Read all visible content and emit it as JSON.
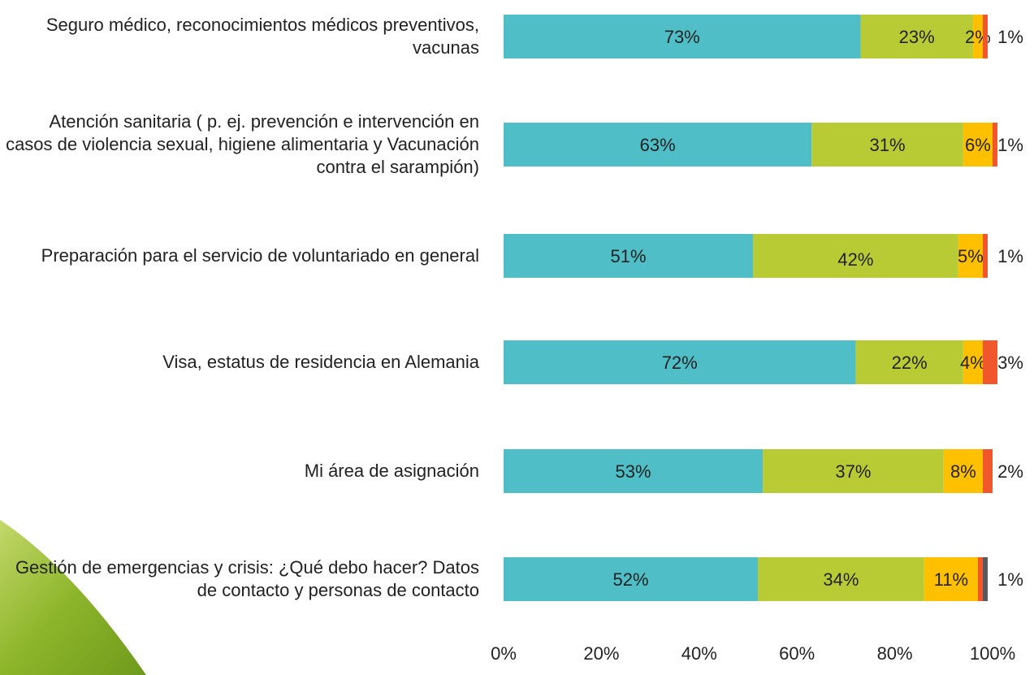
{
  "chart_data": {
    "type": "stacked-bar-horizontal",
    "categories": [
      "Seguro médico, reconocimientos médicos preventivos, vacunas",
      "Atención sanitaria ( p. ej. prevención e intervención en casos de violencia sexual, higiene alimentaria y Vacunación contra el sarampión)",
      "Preparación para el servicio de voluntariado en general",
      "Visa, estatus de residencia en Alemania",
      "Mi área de asignación",
      "Gestión de emergencias y crisis: ¿Qué debo hacer? Datos de contacto y personas de contacto"
    ],
    "series": [
      {
        "color": "#4fbec6",
        "values": [
          73,
          63,
          51,
          72,
          53,
          52
        ],
        "value_labels": [
          "73%",
          "63%",
          "51%",
          "72%",
          "53%",
          "52%"
        ]
      },
      {
        "color": "#b9cb34",
        "values": [
          23,
          31,
          42,
          22,
          37,
          34
        ],
        "value_labels": [
          "23%",
          "31%",
          "42%",
          "22%",
          "37%",
          "34%"
        ]
      },
      {
        "color": "#ffc000",
        "values": [
          2,
          6,
          5,
          4,
          8,
          11
        ],
        "value_labels": [
          "2%",
          "6%",
          "5%",
          "4%",
          "8%",
          "11%"
        ]
      },
      {
        "color": "#f0572a",
        "values": [
          1,
          1,
          1,
          3,
          2,
          1
        ],
        "value_labels": [
          "1%",
          "1%",
          "1%",
          "3%",
          "2%",
          "1%"
        ]
      },
      {
        "color": "#595959",
        "values": [
          null,
          null,
          null,
          null,
          null,
          1
        ]
      }
    ],
    "xlim": [
      0,
      100
    ],
    "xticks": [
      {
        "value": 0,
        "label": "0%"
      },
      {
        "value": 20,
        "label": "20%"
      },
      {
        "value": 40,
        "label": "40%"
      },
      {
        "value": 60,
        "label": "60%"
      },
      {
        "value": 80,
        "label": "80%"
      },
      {
        "value": 100,
        "label": "100%"
      }
    ]
  }
}
